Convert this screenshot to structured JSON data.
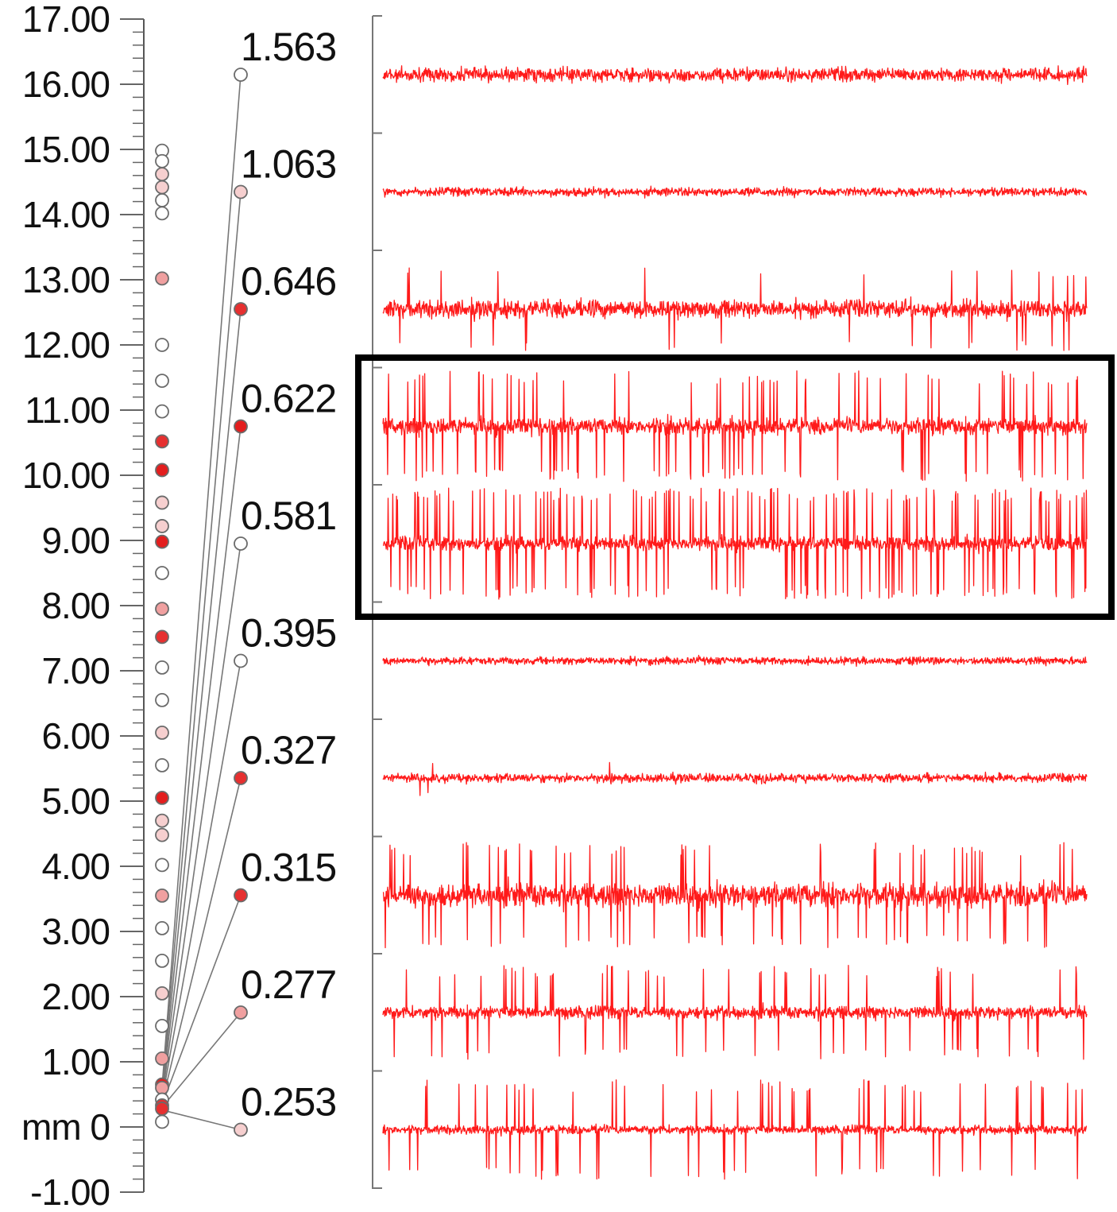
{
  "chart_data": {
    "type": "scatter",
    "title": "",
    "depth_axis": {
      "unit": "mm",
      "min": -1.0,
      "max": 17.0,
      "major_step": 1.0,
      "minor_step": 0.2,
      "tick_labels": [
        "17.00",
        "16.00",
        "15.00",
        "14.00",
        "13.00",
        "12.00",
        "11.00",
        "10.00",
        "9.00",
        "8.00",
        "7.00",
        "6.00",
        "5.00",
        "4.00",
        "3.00",
        "2.00",
        "1.00",
        "mm 0",
        "-1.00"
      ]
    },
    "sites": [
      {
        "depth": 14.98,
        "fill": "#ffffff"
      },
      {
        "depth": 14.82,
        "fill": "#ffffff"
      },
      {
        "depth": 14.62,
        "fill": "#f6cfcf"
      },
      {
        "depth": 14.42,
        "fill": "#f6cfcf"
      },
      {
        "depth": 14.22,
        "fill": "#ffffff"
      },
      {
        "depth": 14.02,
        "fill": "#ffffff"
      },
      {
        "depth": 13.02,
        "fill": "#f0a0a0"
      },
      {
        "depth": 12.0,
        "fill": "#ffffff"
      },
      {
        "depth": 11.45,
        "fill": "#ffffff"
      },
      {
        "depth": 10.98,
        "fill": "#ffffff"
      },
      {
        "depth": 10.52,
        "fill": "#e63030"
      },
      {
        "depth": 10.08,
        "fill": "#e31e1e"
      },
      {
        "depth": 9.58,
        "fill": "#f6cfcf"
      },
      {
        "depth": 9.22,
        "fill": "#f6cfcf"
      },
      {
        "depth": 8.98,
        "fill": "#e31e1e"
      },
      {
        "depth": 8.5,
        "fill": "#ffffff"
      },
      {
        "depth": 7.95,
        "fill": "#f0a0a0"
      },
      {
        "depth": 7.52,
        "fill": "#e63030"
      },
      {
        "depth": 7.05,
        "fill": "#ffffff"
      },
      {
        "depth": 6.55,
        "fill": "#ffffff"
      },
      {
        "depth": 6.05,
        "fill": "#f6cfcf"
      },
      {
        "depth": 5.55,
        "fill": "#ffffff"
      },
      {
        "depth": 5.05,
        "fill": "#e31e1e"
      },
      {
        "depth": 4.7,
        "fill": "#f6cfcf"
      },
      {
        "depth": 4.48,
        "fill": "#f6cfcf"
      },
      {
        "depth": 4.02,
        "fill": "#ffffff"
      },
      {
        "depth": 3.55,
        "fill": "#f0a0a0"
      },
      {
        "depth": 3.05,
        "fill": "#ffffff"
      },
      {
        "depth": 2.55,
        "fill": "#ffffff"
      },
      {
        "depth": 2.05,
        "fill": "#f6cfcf"
      },
      {
        "depth": 1.55,
        "fill": "#ffffff"
      },
      {
        "depth": 1.05,
        "fill": "#f0a0a0"
      },
      {
        "depth": 0.65,
        "fill": "#e31e1e"
      },
      {
        "depth": 0.6,
        "fill": "#f0a0a0"
      },
      {
        "depth": 0.42,
        "fill": "#ffffff"
      },
      {
        "depth": 0.33,
        "fill": "#e63030"
      },
      {
        "depth": 0.28,
        "fill": "#e63030"
      },
      {
        "depth": 0.08,
        "fill": "#ffffff"
      }
    ],
    "channels": [
      {
        "label": "1.563",
        "site_depth": 0.62,
        "fill": "#ffffff",
        "noise": 0.55,
        "spike_rate": 0.0,
        "spike_amp": 0.0
      },
      {
        "label": "1.063",
        "site_depth": 0.58,
        "fill": "#f6cfcf",
        "noise": 0.35,
        "spike_rate": 0.0,
        "spike_amp": 0.0
      },
      {
        "label": "0.646",
        "site_depth": 0.54,
        "fill": "#e63030",
        "noise": 0.7,
        "spike_rate": 0.02,
        "spike_amp": 0.75
      },
      {
        "label": "0.622",
        "site_depth": 0.5,
        "fill": "#e31e1e",
        "noise": 0.65,
        "spike_rate": 0.09,
        "spike_amp": 1.0
      },
      {
        "label": "0.581",
        "site_depth": 0.46,
        "fill": "#ffffff",
        "noise": 0.55,
        "spike_rate": 0.14,
        "spike_amp": 1.0
      },
      {
        "label": "0.395",
        "site_depth": 0.42,
        "fill": "#ffffff",
        "noise": 0.3,
        "spike_rate": 0.0,
        "spike_amp": 0.0
      },
      {
        "label": "0.327",
        "site_depth": 0.38,
        "fill": "#e63030",
        "noise": 0.35,
        "spike_rate": 0.005,
        "spike_amp": 0.35
      },
      {
        "label": "0.315",
        "site_depth": 0.34,
        "fill": "#e63030",
        "noise": 0.95,
        "spike_rate": 0.06,
        "spike_amp": 0.95
      },
      {
        "label": "0.277",
        "site_depth": 0.3,
        "fill": "#f0a0a0",
        "noise": 0.5,
        "spike_rate": 0.05,
        "spike_amp": 0.85
      },
      {
        "label": "0.253",
        "site_depth": 0.26,
        "fill": "#f6cfcf",
        "noise": 0.35,
        "spike_rate": 0.05,
        "spike_amp": 0.9
      }
    ],
    "highlight": {
      "channels": [
        "0.622",
        "0.581"
      ],
      "color": "#000000"
    },
    "trace_color": "#ff1a1a"
  }
}
